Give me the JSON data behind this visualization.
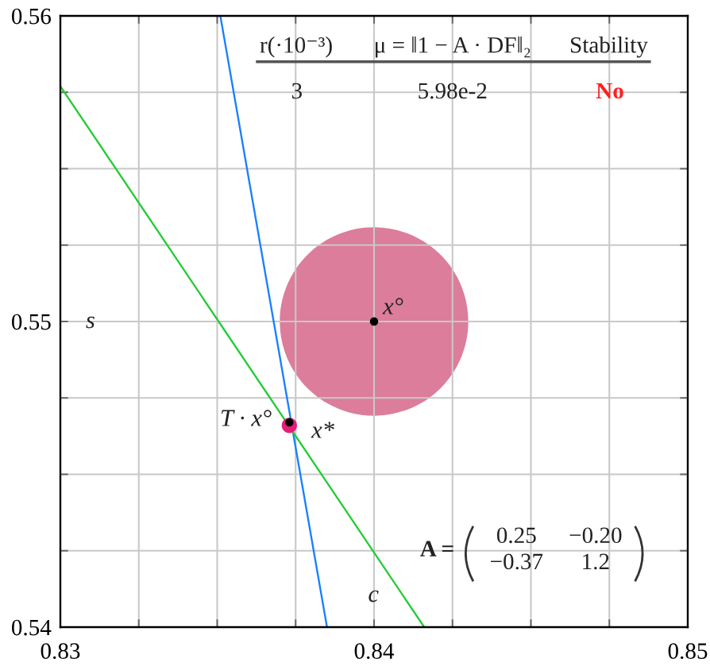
{
  "chart_data": {
    "type": "line",
    "xlim": [
      0.83,
      0.85
    ],
    "ylim": [
      0.54,
      0.56
    ],
    "xticks": [
      0.83,
      {
        "value": 0.8325,
        "label": null
      },
      {
        "value": 0.835,
        "label": null
      },
      {
        "value": 0.8375,
        "label": null
      },
      0.84,
      {
        "value": 0.8425,
        "label": null
      },
      {
        "value": 0.845,
        "label": null
      },
      {
        "value": 0.8475,
        "label": null
      },
      0.85
    ],
    "yticks": [
      0.54,
      {
        "value": 0.5425,
        "label": null
      },
      {
        "value": 0.545,
        "label": null
      },
      {
        "value": 0.5475,
        "label": null
      },
      0.55,
      {
        "value": 0.5525,
        "label": null
      },
      {
        "value": 0.555,
        "label": null
      },
      {
        "value": 0.5575,
        "label": null
      },
      0.56
    ],
    "grid": true,
    "series": [
      {
        "color": "#1a80ff",
        "x": [
          0.8351,
          0.8385
        ],
        "values": [
          0.56,
          0.54
        ],
        "line_style": "solid"
      },
      {
        "color": "#22cc33",
        "x": [
          0.83,
          0.8416
        ],
        "values": [
          0.5577,
          0.54
        ],
        "line_style": "solid"
      },
      {
        "type": "bubble",
        "color": "#dc7d9b",
        "x": [
          0.84
        ],
        "values": [
          0.55
        ],
        "sizes": [
          1
        ]
      },
      {
        "type": "scatter",
        "name": "x°",
        "color": "#000000",
        "x": [
          0.84
        ],
        "values": [
          0.55
        ],
        "marker": "circle"
      },
      {
        "type": "scatter",
        "name": "x*",
        "color": "#e61e78",
        "x": [
          0.8373
        ],
        "values": [
          0.5466
        ],
        "marker": "circle"
      },
      {
        "type": "scatter",
        "name": "T · x°",
        "color": "#000000",
        "x": [
          0.8373
        ],
        "values": [
          0.5467
        ],
        "marker": "circle"
      }
    ],
    "annotations": [
      "r(·10⁻³)",
      "μ = ‖1 − A · DF‖₂",
      "Stability",
      "3",
      "5.98e-2",
      "No",
      "A =",
      "0.25",
      "−0.20",
      "−0.37",
      "1.2",
      "s",
      "c"
    ]
  }
}
